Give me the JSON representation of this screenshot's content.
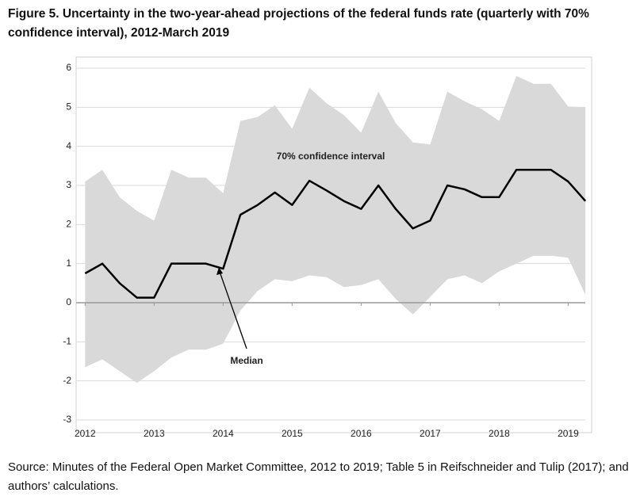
{
  "chart_data": {
    "type": "line",
    "title": "Figure 5. Uncertainty in the two-year-ahead projections of the federal funds rate (quarterly with 70% confidence interval), 2012-March 2019",
    "source": "Source: Minutes of the Federal Open Market Committee, 2012 to 2019; Table 5 in Reifschneider and Tulip (2017); and authors’ calculations.",
    "x": [
      2012,
      2012.25,
      2012.5,
      2012.75,
      2013,
      2013.25,
      2013.5,
      2013.75,
      2014,
      2014.25,
      2014.5,
      2014.75,
      2015,
      2015.25,
      2015.5,
      2015.75,
      2016,
      2016.25,
      2016.5,
      2016.75,
      2017,
      2017.25,
      2017.5,
      2017.75,
      2018,
      2018.25,
      2018.5,
      2018.75,
      2019,
      2019.25
    ],
    "series": [
      {
        "name": "Median",
        "color": "#000000",
        "values": [
          0.75,
          1.0,
          0.5,
          0.13,
          0.13,
          1.0,
          1.0,
          1.0,
          0.87,
          2.25,
          2.5,
          2.82,
          2.5,
          3.12,
          2.87,
          2.6,
          2.4,
          3.0,
          2.4,
          1.9,
          2.1,
          3.0,
          2.9,
          2.7,
          2.7,
          3.4,
          3.4,
          3.4,
          3.1,
          2.6
        ]
      }
    ],
    "band": {
      "name": "70% confidence interval",
      "color": "#d9d9d9",
      "upper": [
        3.1,
        3.4,
        2.7,
        2.35,
        2.1,
        3.4,
        3.2,
        3.2,
        2.8,
        4.65,
        4.75,
        5.05,
        4.45,
        5.5,
        5.1,
        4.8,
        4.35,
        5.4,
        4.6,
        4.1,
        4.05,
        5.4,
        5.15,
        4.95,
        4.65,
        5.8,
        5.6,
        5.6,
        5.02,
        5.0
      ],
      "lower": [
        -1.65,
        -1.45,
        -1.75,
        -2.05,
        -1.75,
        -1.4,
        -1.2,
        -1.2,
        -1.05,
        -0.2,
        0.3,
        0.6,
        0.55,
        0.7,
        0.65,
        0.4,
        0.45,
        0.6,
        0.1,
        -0.3,
        0.15,
        0.6,
        0.7,
        0.5,
        0.8,
        1.0,
        1.2,
        1.2,
        1.15,
        0.2
      ]
    },
    "xlim": [
      2011.87,
      2019.34
    ],
    "xticks": [
      2012,
      2013,
      2014,
      2015,
      2016,
      2017,
      2018,
      2019
    ],
    "ylim": [
      -3,
      6
    ],
    "yticks": [
      -3,
      -2,
      -1,
      0,
      1,
      2,
      3,
      4,
      5,
      6
    ],
    "grid": true
  }
}
